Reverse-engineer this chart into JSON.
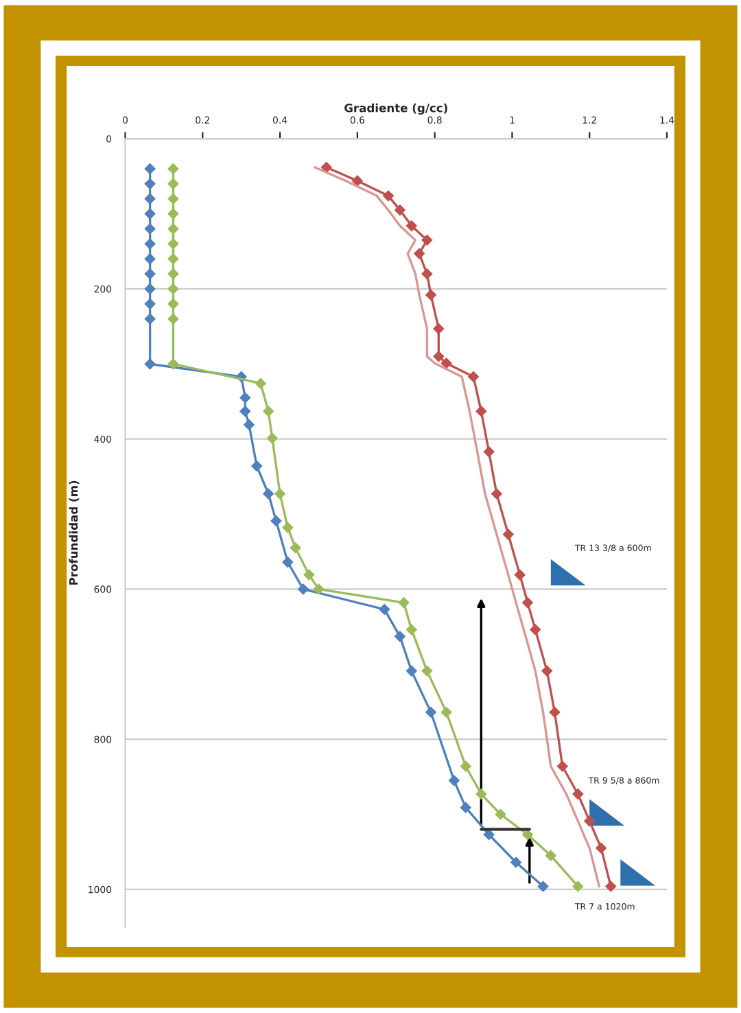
{
  "chart_data": {
    "type": "line",
    "title": "Gradiente (g/cc)",
    "ylabel": "Profundidad (m)",
    "xlim": [
      0,
      1.4
    ],
    "xticks": [
      0,
      0.2,
      0.4,
      0.6,
      0.8,
      1,
      1.2,
      1.4
    ],
    "ylim": [
      1050,
      0
    ],
    "yticks": [
      0,
      200,
      400,
      600,
      800,
      1000
    ],
    "grid": "y",
    "marker": "diamond",
    "line_style": "solid",
    "legend": false,
    "series": [
      {
        "color": "#4f81bd",
        "x": [
          0.064,
          0.064,
          0.064,
          0.064,
          0.064,
          0.064,
          0.064,
          0.064,
          0.064,
          0.064,
          0.064,
          0.064,
          0.3,
          0.31,
          0.31,
          0.32,
          0.34,
          0.37,
          0.39,
          0.42,
          0.46,
          0.67,
          0.71,
          0.74,
          0.79,
          0.85,
          0.88,
          0.94,
          1.01,
          1.08
        ],
        "values": [
          40,
          60,
          80,
          100,
          120,
          140,
          160,
          180,
          200,
          220,
          240,
          300,
          317,
          345,
          363,
          381,
          436,
          473,
          509,
          564,
          600,
          627,
          663,
          709,
          764,
          855,
          891,
          927,
          964,
          996
        ]
      },
      {
        "color": "#9bbb59",
        "x": [
          0.124,
          0.124,
          0.124,
          0.124,
          0.124,
          0.124,
          0.124,
          0.124,
          0.124,
          0.124,
          0.124,
          0.124,
          0.35,
          0.37,
          0.38,
          0.4,
          0.42,
          0.44,
          0.475,
          0.5,
          0.72,
          0.74,
          0.78,
          0.83,
          0.88,
          0.92,
          0.97,
          1.04,
          1.1,
          1.17
        ],
        "values": [
          40,
          60,
          80,
          100,
          120,
          140,
          160,
          180,
          200,
          220,
          240,
          300,
          326,
          363,
          399,
          473,
          518,
          545,
          581,
          600,
          618,
          654,
          709,
          764,
          836,
          873,
          900,
          927,
          955,
          996
        ]
      },
      {
        "color": "#c0504d",
        "x": [
          0.52,
          0.6,
          0.68,
          0.71,
          0.74,
          0.78,
          0.76,
          0.78,
          0.79,
          0.81,
          0.81,
          0.83,
          0.9,
          0.92,
          0.94,
          0.96,
          0.99,
          1.02,
          1.04,
          1.06,
          1.09,
          1.11,
          1.13,
          1.17,
          1.2,
          1.23,
          1.255
        ],
        "values": [
          38,
          56,
          76,
          95,
          116,
          135,
          153,
          180,
          208,
          253,
          290,
          299,
          317,
          363,
          417,
          473,
          527,
          581,
          618,
          654,
          709,
          764,
          836,
          873,
          909,
          945,
          996
        ]
      },
      {
        "color": "#d99694",
        "marker": "none",
        "x": [
          0.49,
          0.57,
          0.65,
          0.68,
          0.71,
          0.75,
          0.73,
          0.75,
          0.76,
          0.78,
          0.78,
          0.8,
          0.87,
          0.89,
          0.91,
          0.93,
          0.96,
          0.99,
          1.01,
          1.03,
          1.06,
          1.08,
          1.1,
          1.14,
          1.17,
          1.2,
          1.225
        ],
        "values": [
          38,
          56,
          76,
          95,
          116,
          135,
          153,
          180,
          208,
          253,
          290,
          299,
          317,
          363,
          417,
          473,
          527,
          581,
          618,
          654,
          709,
          764,
          836,
          873,
          909,
          945,
          996
        ]
      }
    ],
    "annotations": [
      "TR 13 3/8 a 600m",
      "TR 9 5/8 a 860m",
      "TR 7 a 1020m"
    ]
  }
}
